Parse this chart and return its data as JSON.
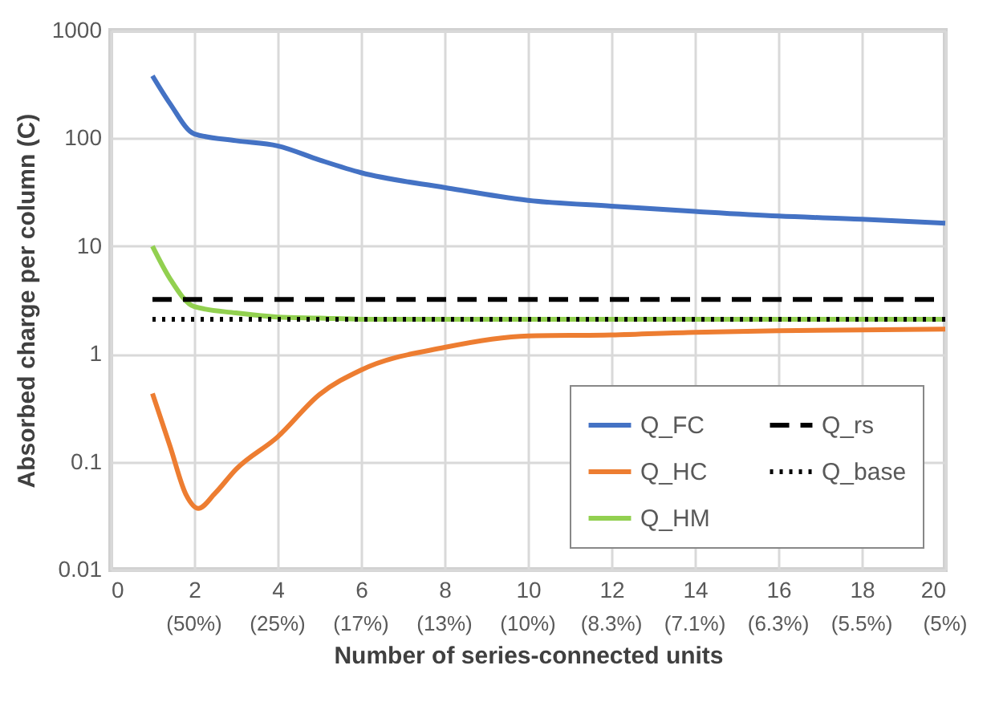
{
  "chart_data": {
    "type": "line",
    "xlabel": "Number of series-connected units",
    "ylabel": "Absorbed charge per column (C)",
    "x": [
      1,
      1.42,
      2,
      3,
      4,
      5,
      6,
      8,
      10,
      12,
      14,
      16,
      18,
      20
    ],
    "xlim": [
      0,
      20
    ],
    "xticks": [
      0,
      2,
      4,
      6,
      8,
      10,
      12,
      14,
      16,
      18,
      20
    ],
    "annotations": [
      "(50%)",
      "(25%)",
      "(17%)",
      "(13%)",
      "(10%)",
      "(8.3%)",
      "(7.1%)",
      "(6.3%)",
      "(5.5%)",
      "(5%)"
    ],
    "ylim": [
      0.01,
      1000
    ],
    "yticks": [
      0.01,
      0.1,
      1,
      10,
      100,
      1000
    ],
    "log": "y",
    "grid": true,
    "legend": "bottom right",
    "marker": "none",
    "series": [
      {
        "name": "Q_FC",
        "color": "#4472c4",
        "values": [
          380,
          210,
          110,
          95,
          85,
          63,
          48,
          35,
          26.6,
          23.5,
          21,
          19,
          17.8,
          16.3
        ]
      },
      {
        "name": "Q_HC",
        "color": "#ed7d31",
        "x": [
          1,
          1.42,
          1.8,
          2.1,
          2.5,
          3,
          4,
          5,
          6,
          8,
          10,
          12,
          14,
          16,
          18,
          20
        ],
        "values": [
          0.43,
          0.14,
          0.05,
          0.037,
          0.051,
          0.085,
          0.17,
          0.42,
          0.71,
          1.15,
          1.47,
          1.5,
          1.59,
          1.64,
          1.67,
          1.7
        ]
      },
      {
        "name": "Q_HM",
        "color": "#92d050",
        "values": [
          10,
          5,
          2.75,
          2.4,
          2.2,
          2.15,
          2.1,
          2.1,
          2.1,
          2.1,
          2.1,
          2.1,
          2.1,
          2.1
        ]
      },
      {
        "name": "Q_rs",
        "color": "#000000",
        "line_style": "dashed",
        "x": [
          1,
          20
        ],
        "values": [
          3.2,
          3.2
        ]
      },
      {
        "name": "Q_base",
        "color": "#000000",
        "line_style": "dotted",
        "x": [
          1,
          20
        ],
        "values": [
          2.1,
          2.1
        ]
      }
    ]
  }
}
